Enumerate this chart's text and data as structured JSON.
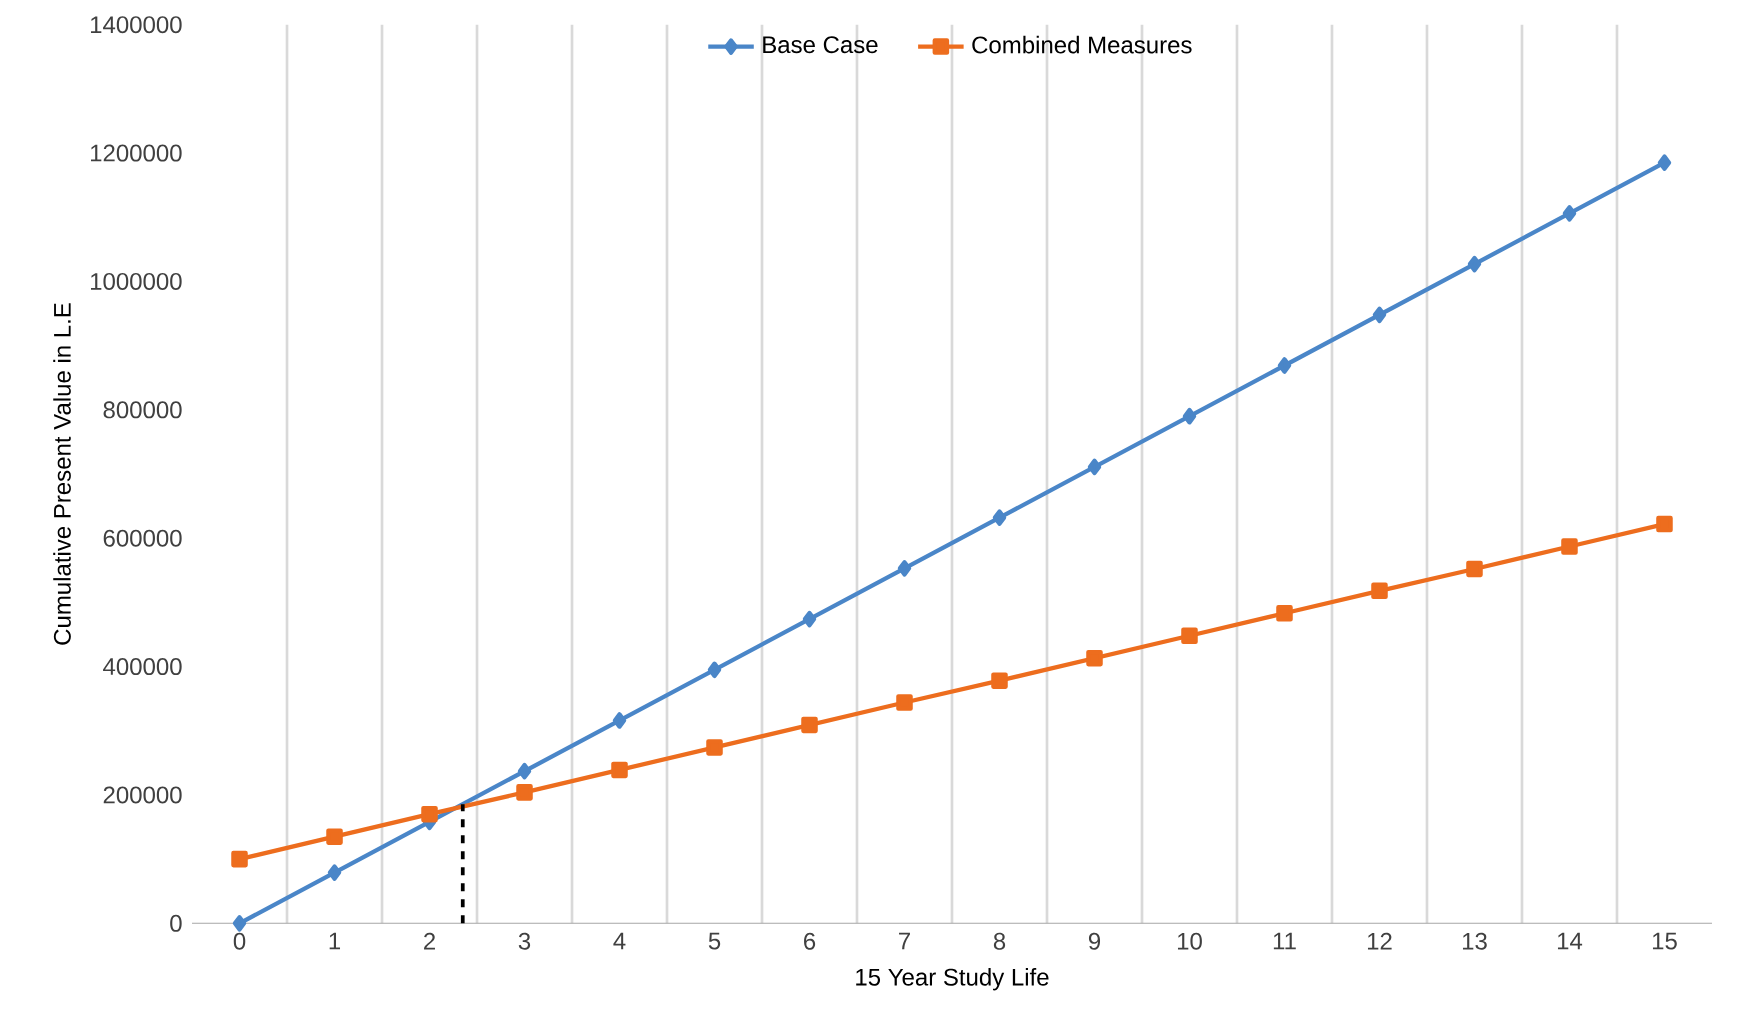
{
  "chart_data": {
    "type": "line",
    "xlabel": "15 Year Study Life",
    "ylabel": "Cumulative Present Value in L.E",
    "x": [
      0,
      1,
      2,
      3,
      4,
      5,
      6,
      7,
      8,
      9,
      10,
      11,
      12,
      13,
      14,
      15
    ],
    "xlim": [
      -0.5,
      15.5
    ],
    "xticks": [
      0,
      1,
      2,
      3,
      4,
      5,
      6,
      7,
      8,
      9,
      10,
      11,
      12,
      13,
      14,
      15,
      {
        "value": 0.5,
        "label": null
      },
      {
        "value": 1.5,
        "label": null
      },
      {
        "value": 2.5,
        "label": null
      },
      {
        "value": 3.5,
        "label": null
      },
      {
        "value": 4.5,
        "label": null
      },
      {
        "value": 5.5,
        "label": null
      },
      {
        "value": 6.5,
        "label": null
      },
      {
        "value": 7.5,
        "label": null
      },
      {
        "value": 8.5,
        "label": null
      },
      {
        "value": 9.5,
        "label": null
      },
      {
        "value": 10.5,
        "label": null
      },
      {
        "value": 11.5,
        "label": null
      },
      {
        "value": 12.5,
        "label": null
      },
      {
        "value": 13.5,
        "label": null
      },
      {
        "value": 14.5,
        "label": null
      }
    ],
    "series": [
      {
        "name": "Base Case",
        "color": "#4a86c8",
        "marker": "diamond",
        "values": [
          0,
          79000,
          158000,
          237000,
          316000,
          395000,
          474000,
          553000,
          632000,
          711000,
          790000,
          869000,
          948000,
          1027000,
          1106000,
          1185000
        ]
      },
      {
        "name": "Combined Measures",
        "color": "#ed6d1e",
        "marker": "square",
        "values": [
          100000,
          135000,
          170000,
          204000,
          239000,
          274000,
          309000,
          344000,
          378000,
          413000,
          448000,
          483000,
          518000,
          552000,
          587000,
          622000
        ]
      }
    ],
    "ylim": [
      0,
      1400000
    ],
    "yticks": [
      0,
      200000,
      400000,
      600000,
      800000,
      1000000,
      1200000,
      1400000
    ],
    "grid": "x",
    "legend": "top",
    "line_style": "solid",
    "ref_lines": [
      {
        "axis": "x",
        "value": 2.35,
        "color": "#000000",
        "line_style": "dashed"
      }
    ]
  }
}
